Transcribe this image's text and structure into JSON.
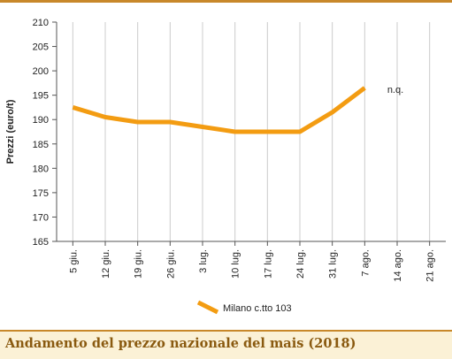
{
  "colors": {
    "series": "#f39c12",
    "accent": "#c8882a",
    "caption_text": "#8a5a10",
    "caption_bg": "#fbf1d6",
    "grid": "#cccccc"
  },
  "caption": "Andamento del prezzo nazionale del mais (2018)",
  "chart_data": {
    "type": "line",
    "title": "",
    "xlabel": "",
    "ylabel": "Prezzi (euro/t)",
    "categories": [
      "5 giu.",
      "12 giu.",
      "19 giu.",
      "26 giu.",
      "3 lug.",
      "10 lug.",
      "17 lug.",
      "24 lug.",
      "31 lug.",
      "7 ago.",
      "14 ago.",
      "21 ago."
    ],
    "ylim": [
      165,
      210
    ],
    "yticks": [
      165,
      170,
      175,
      180,
      185,
      190,
      195,
      200,
      205,
      210
    ],
    "grid": "vertical",
    "legend_position": "bottom-center",
    "series": [
      {
        "name": "Milano  c.tto 103",
        "values": [
          192.5,
          190.5,
          189.5,
          189.5,
          188.5,
          187.5,
          187.5,
          187.5,
          191.5,
          196.5,
          null,
          null
        ]
      }
    ],
    "annotations": [
      {
        "text": "n.q.",
        "category": "14 ago."
      }
    ]
  }
}
